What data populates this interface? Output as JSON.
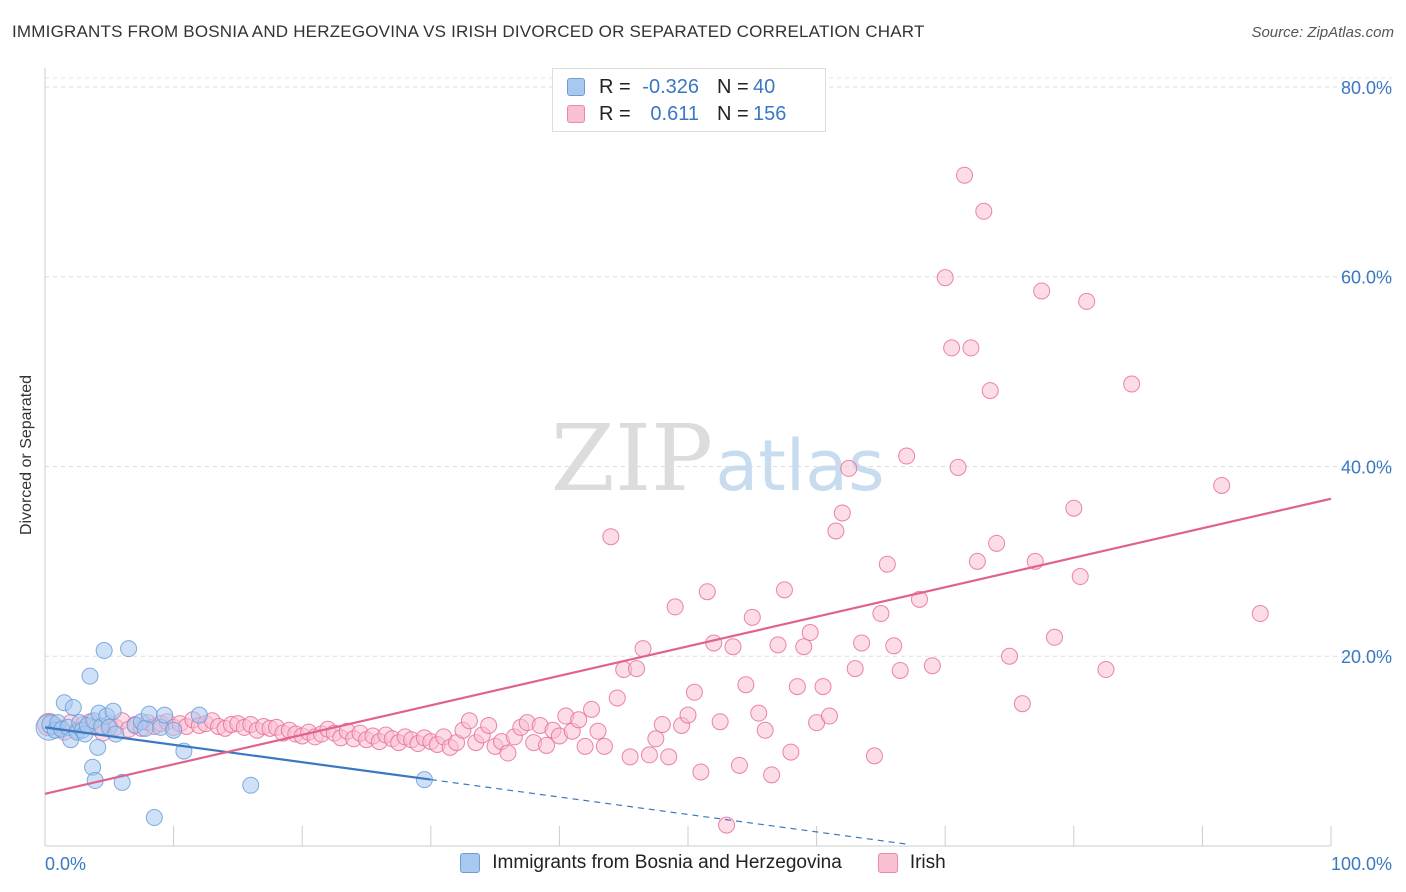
{
  "title": "IMMIGRANTS FROM BOSNIA AND HERZEGOVINA VS IRISH DIVORCED OR SEPARATED CORRELATION CHART",
  "source": "Source: ZipAtlas.com",
  "watermark": {
    "zip": "ZIP",
    "atlas": "atlas"
  },
  "stats": [
    {
      "r_label": "R =",
      "r_value": "-0.326",
      "n_label": "N =",
      "n_value": "40",
      "color": "#a8c8f0",
      "border": "#6a9fd8"
    },
    {
      "r_label": "R =",
      "r_value": "0.611",
      "n_label": "N =",
      "n_value": "156",
      "color": "#f9c0d2",
      "border": "#e88aa8"
    }
  ],
  "legend": [
    {
      "label": "Immigrants from Bosnia and Herzegovina",
      "color": "#a8c8f0",
      "border": "#6a9fd8"
    },
    {
      "label": "Irish",
      "color": "#f9c0d2",
      "border": "#e88aa8"
    }
  ],
  "chart_data": {
    "type": "scatter",
    "title": "IMMIGRANTS FROM BOSNIA AND HERZEGOVINA VS IRISH DIVORCED OR SEPARATED CORRELATION CHART",
    "xlabel": "",
    "ylabel": "Divorced or Separated",
    "xlim": [
      0,
      100
    ],
    "ylim": [
      0,
      82
    ],
    "x_tick_labels": [
      "0.0%",
      "100.0%"
    ],
    "y_ticks": [
      20,
      40,
      60,
      80
    ],
    "y_tick_labels": [
      "20.0%",
      "40.0%",
      "60.0%",
      "80.0%"
    ],
    "grid": true,
    "legend_position": "bottom",
    "series": [
      {
        "name": "Immigrants from Bosnia and Herzegovina",
        "color": "#6a9fd8",
        "fill": "#a8c8f0",
        "r": -0.326,
        "n": 40,
        "trend": {
          "x0": 0,
          "y0": 12.5,
          "x1": 30,
          "y1": 7.0,
          "dash_to_x": 67,
          "dash_to_y": 0.2
        },
        "points": [
          [
            0.3,
            12.5,
            1.6
          ],
          [
            0.5,
            12.8,
            1.2
          ],
          [
            0.8,
            12.2,
            1
          ],
          [
            1.0,
            13.0,
            1
          ],
          [
            1.3,
            12.3,
            1
          ],
          [
            1.5,
            15.1,
            1
          ],
          [
            1.8,
            12.5,
            1
          ],
          [
            2.0,
            11.2,
            1
          ],
          [
            2.2,
            14.6,
            1
          ],
          [
            2.5,
            12.0,
            1
          ],
          [
            2.7,
            13.0,
            1
          ],
          [
            2.9,
            12.2,
            1
          ],
          [
            3.1,
            11.8,
            1
          ],
          [
            3.3,
            12.7,
            1
          ],
          [
            3.5,
            17.9,
            1
          ],
          [
            3.7,
            8.3,
            1
          ],
          [
            3.8,
            13.2,
            1
          ],
          [
            3.9,
            6.9,
            1
          ],
          [
            4.1,
            10.4,
            1
          ],
          [
            4.2,
            14.0,
            1
          ],
          [
            4.4,
            12.6,
            1
          ],
          [
            4.6,
            20.6,
            1
          ],
          [
            4.8,
            13.7,
            1
          ],
          [
            5.0,
            12.5,
            1
          ],
          [
            5.3,
            14.2,
            1
          ],
          [
            5.5,
            11.8,
            1
          ],
          [
            6.0,
            6.7,
            1
          ],
          [
            6.5,
            20.8,
            1
          ],
          [
            7.0,
            12.7,
            1
          ],
          [
            7.5,
            13.1,
            1
          ],
          [
            7.8,
            12.4,
            1
          ],
          [
            8.1,
            13.9,
            1
          ],
          [
            8.5,
            3.0,
            1
          ],
          [
            9.0,
            12.5,
            1
          ],
          [
            9.3,
            13.8,
            1
          ],
          [
            10.0,
            12.2,
            1
          ],
          [
            10.8,
            10.0,
            1
          ],
          [
            12.0,
            13.8,
            1
          ],
          [
            16.0,
            6.4,
            1
          ],
          [
            29.5,
            7.0,
            1
          ]
        ]
      },
      {
        "name": "Irish",
        "color": "#e8709a",
        "fill": "#f9c0d2",
        "r": 0.611,
        "n": 156,
        "trend": {
          "x0": 0,
          "y0": 5.5,
          "x1": 100,
          "y1": 36.6
        },
        "points": [
          [
            0.3,
            12.8,
            1.4
          ],
          [
            1.0,
            12.5,
            1
          ],
          [
            1.5,
            12.0,
            1
          ],
          [
            2.0,
            13.0,
            1
          ],
          [
            2.5,
            12.2,
            1
          ],
          [
            3.0,
            12.8,
            1
          ],
          [
            3.5,
            13.1,
            1
          ],
          [
            4.0,
            12.5,
            1
          ],
          [
            4.5,
            11.9,
            1
          ],
          [
            5.0,
            12.9,
            1
          ],
          [
            5.5,
            12.5,
            1
          ],
          [
            6.0,
            13.2,
            1
          ],
          [
            6.5,
            12.3,
            1
          ],
          [
            7.0,
            12.8,
            1
          ],
          [
            7.5,
            12.4,
            1
          ],
          [
            8.0,
            13.0,
            1
          ],
          [
            8.5,
            12.6,
            1
          ],
          [
            9.0,
            12.9,
            1
          ],
          [
            9.5,
            13.1,
            1
          ],
          [
            10.0,
            12.5,
            1
          ],
          [
            10.5,
            12.9,
            1
          ],
          [
            11.0,
            12.6,
            1
          ],
          [
            11.5,
            13.3,
            1
          ],
          [
            12.0,
            12.7,
            1
          ],
          [
            12.5,
            12.9,
            1
          ],
          [
            13.0,
            13.2,
            1
          ],
          [
            13.5,
            12.6,
            1
          ],
          [
            14.0,
            12.4,
            1
          ],
          [
            14.5,
            12.8,
            1
          ],
          [
            15.0,
            12.9,
            1
          ],
          [
            15.5,
            12.5,
            1
          ],
          [
            16.0,
            12.8,
            1
          ],
          [
            16.5,
            12.2,
            1
          ],
          [
            17.0,
            12.6,
            1
          ],
          [
            17.5,
            12.4,
            1
          ],
          [
            18.0,
            12.5,
            1
          ],
          [
            18.5,
            11.9,
            1
          ],
          [
            19.0,
            12.2,
            1
          ],
          [
            19.5,
            11.8,
            1
          ],
          [
            20.0,
            11.6,
            1
          ],
          [
            20.5,
            12.0,
            1
          ],
          [
            21.0,
            11.5,
            1
          ],
          [
            21.5,
            11.8,
            1
          ],
          [
            22.0,
            12.3,
            1
          ],
          [
            22.5,
            11.9,
            1
          ],
          [
            23.0,
            11.4,
            1
          ],
          [
            23.5,
            12.1,
            1
          ],
          [
            24.0,
            11.3,
            1
          ],
          [
            24.5,
            11.9,
            1
          ],
          [
            25.0,
            11.2,
            1
          ],
          [
            25.5,
            11.6,
            1
          ],
          [
            26.0,
            11.0,
            1
          ],
          [
            26.5,
            11.7,
            1
          ],
          [
            27.0,
            11.3,
            1
          ],
          [
            27.5,
            10.9,
            1
          ],
          [
            28.0,
            11.5,
            1
          ],
          [
            28.5,
            11.2,
            1
          ],
          [
            29.0,
            10.8,
            1
          ],
          [
            29.5,
            11.4,
            1
          ],
          [
            30.0,
            11.0,
            1
          ],
          [
            30.5,
            10.7,
            1
          ],
          [
            31.0,
            11.5,
            1
          ],
          [
            31.5,
            10.4,
            1
          ],
          [
            32.0,
            10.9,
            1
          ],
          [
            32.5,
            12.2,
            1
          ],
          [
            33.0,
            13.2,
            1
          ],
          [
            33.5,
            10.9,
            1
          ],
          [
            34.0,
            11.7,
            1
          ],
          [
            34.5,
            12.7,
            1
          ],
          [
            35.0,
            10.5,
            1
          ],
          [
            35.5,
            11.0,
            1
          ],
          [
            36.0,
            9.8,
            1
          ],
          [
            36.5,
            11.5,
            1
          ],
          [
            37.0,
            12.5,
            1
          ],
          [
            37.5,
            13.0,
            1
          ],
          [
            38.0,
            10.9,
            1
          ],
          [
            38.5,
            12.7,
            1
          ],
          [
            39.0,
            10.6,
            1
          ],
          [
            39.5,
            12.2,
            1
          ],
          [
            40.0,
            11.6,
            1
          ],
          [
            40.5,
            13.7,
            1
          ],
          [
            41.0,
            12.1,
            1
          ],
          [
            41.5,
            13.3,
            1
          ],
          [
            42.0,
            10.5,
            1
          ],
          [
            42.5,
            14.4,
            1
          ],
          [
            43.0,
            12.1,
            1
          ],
          [
            43.5,
            10.5,
            1
          ],
          [
            44.0,
            32.6,
            1
          ],
          [
            44.5,
            15.6,
            1
          ],
          [
            45.0,
            18.6,
            1
          ],
          [
            45.5,
            9.4,
            1
          ],
          [
            46.0,
            18.7,
            1
          ],
          [
            46.5,
            20.8,
            1
          ],
          [
            47.0,
            9.6,
            1
          ],
          [
            47.5,
            11.3,
            1
          ],
          [
            48.0,
            12.8,
            1
          ],
          [
            48.5,
            9.4,
            1
          ],
          [
            49.0,
            25.2,
            1
          ],
          [
            49.5,
            12.7,
            1
          ],
          [
            50.0,
            13.8,
            1
          ],
          [
            50.5,
            16.2,
            1
          ],
          [
            51.0,
            7.8,
            1
          ],
          [
            51.5,
            26.8,
            1
          ],
          [
            52.0,
            21.4,
            1
          ],
          [
            52.5,
            13.1,
            1
          ],
          [
            53.0,
            2.2,
            1
          ],
          [
            53.5,
            21.0,
            1
          ],
          [
            54.0,
            8.5,
            1
          ],
          [
            54.5,
            17.0,
            1
          ],
          [
            55.0,
            24.1,
            1
          ],
          [
            55.5,
            14.0,
            1
          ],
          [
            56.0,
            12.2,
            1
          ],
          [
            56.5,
            7.5,
            1
          ],
          [
            57.0,
            21.2,
            1
          ],
          [
            57.5,
            27.0,
            1
          ],
          [
            58.0,
            9.9,
            1
          ],
          [
            58.5,
            16.8,
            1
          ],
          [
            59.0,
            21.0,
            1
          ],
          [
            59.5,
            22.5,
            1
          ],
          [
            60.0,
            13.0,
            1
          ],
          [
            60.5,
            16.8,
            1
          ],
          [
            61.0,
            13.7,
            1
          ],
          [
            61.5,
            33.2,
            1
          ],
          [
            62.0,
            35.1,
            1
          ],
          [
            62.5,
            39.8,
            1
          ],
          [
            63.0,
            18.7,
            1
          ],
          [
            63.5,
            21.4,
            1
          ],
          [
            64.5,
            9.5,
            1
          ],
          [
            65.0,
            24.5,
            1
          ],
          [
            65.5,
            29.7,
            1
          ],
          [
            66.0,
            21.1,
            1
          ],
          [
            66.5,
            18.5,
            1
          ],
          [
            67.0,
            41.1,
            1
          ],
          [
            68.0,
            26.0,
            1
          ],
          [
            69.0,
            19.0,
            1
          ],
          [
            70.0,
            59.9,
            1
          ],
          [
            70.5,
            52.5,
            1
          ],
          [
            71.0,
            39.9,
            1
          ],
          [
            71.5,
            70.7,
            1
          ],
          [
            72.0,
            52.5,
            1
          ],
          [
            72.5,
            30.0,
            1
          ],
          [
            73.0,
            66.9,
            1
          ],
          [
            73.5,
            48.0,
            1
          ],
          [
            74.0,
            31.9,
            1
          ],
          [
            75.0,
            20.0,
            1
          ],
          [
            76.0,
            15.0,
            1
          ],
          [
            77.0,
            30.0,
            1
          ],
          [
            77.5,
            58.5,
            1
          ],
          [
            78.5,
            22.0,
            1
          ],
          [
            80.0,
            35.6,
            1
          ],
          [
            80.5,
            28.4,
            1
          ],
          [
            81.0,
            57.4,
            1
          ],
          [
            82.5,
            18.6,
            1
          ],
          [
            84.5,
            48.7,
            1
          ],
          [
            91.5,
            38.0,
            1
          ],
          [
            94.5,
            24.5,
            1
          ]
        ]
      }
    ]
  }
}
